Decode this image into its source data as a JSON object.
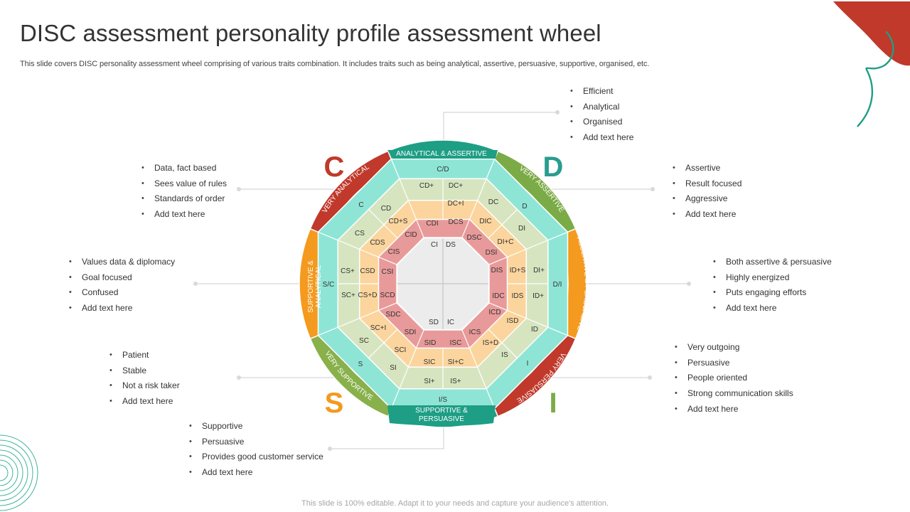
{
  "title": "DISC assessment personality profile assessment wheel",
  "subtitle": "This slide covers DISC personality assessment wheel comprising of various traits combination. It includes traits such as being analytical, assertive, persuasive, supportive, organised, etc.",
  "footer": "This slide is 100% editable. Adapt it to your needs and capture your audience's attention.",
  "colors": {
    "analytical_red": "#c0392b",
    "assertive_green": "#7bab46",
    "persuasive_orange": "#f39a1f",
    "supportive_green": "#88b04b",
    "teal_dark": "#1e9e85",
    "teal_light": "#8ee5d6",
    "sage": "#d6e5bf",
    "peach": "#fbd59d",
    "rose": "#e89a9a",
    "center": "#ececec",
    "deco_red": "#c0392b",
    "deco_teal": "#1e9e85"
  },
  "quadrant_letters": {
    "c": "C",
    "d": "D",
    "i": "I",
    "s": "S"
  },
  "ring_labels": {
    "top": "ANALYTICAL & ASSERTIVE",
    "top_right": "VERY ASSERTIVE",
    "right": "ASSERTIVE & PERSUASIVE",
    "bottom_right": "VERY PERSUASIVE",
    "bottom_line1": "SUPPORTIVE  &",
    "bottom_line2": "PERSUASIVE",
    "bottom_left": "VERY SUPPORTIVE",
    "left_line1": "SUPPORTIVE  &",
    "left_line2": "ANALYTICAL",
    "top_left": "VERY ANALYTICAL"
  },
  "wheel_cells": {
    "ring1": [
      "C/D",
      "D",
      "D/I",
      "I",
      "I/S",
      "S",
      "S/C",
      "C"
    ],
    "ring2": [
      "DC+",
      "DC",
      "DI",
      "DI+",
      "ID+",
      "ID",
      "IS",
      "IS+",
      "SI+",
      "SI",
      "SC",
      "SC+",
      "CS+",
      "CS",
      "CD",
      "CD+"
    ],
    "ring3": [
      "DC+I",
      "DIC",
      "DI+C",
      "ID+S",
      "IDS",
      "ISD",
      "IS+D",
      "SI+C",
      "SIC",
      "SCI",
      "SC+I",
      "CS+D",
      "CSD",
      "CDS",
      "CD+S"
    ],
    "ring4": [
      "DCS",
      "DSC",
      "DSI",
      "DIS",
      "IDC",
      "ICD",
      "ICS",
      "ISC",
      "SID",
      "SDI",
      "SDC",
      "SCD",
      "CSI",
      "CIS",
      "CID",
      "CDI"
    ],
    "center": [
      "CI",
      "DS",
      "SD",
      "IC"
    ]
  },
  "callouts": {
    "top_right": [
      "Efficient",
      "Analytical",
      "Organised",
      "Add text here"
    ],
    "right_upper": [
      "Assertive",
      "Result focused",
      "Aggressive",
      "Add text here"
    ],
    "right_mid": [
      "Both assertive & persuasive",
      "Highly energized",
      "Puts engaging efforts",
      "Add text here"
    ],
    "right_lower": [
      "Very outgoing",
      "Persuasive",
      "People oriented",
      "Strong communication skills",
      "Add text here"
    ],
    "left_upper": [
      "Data, fact based",
      "Sees value of rules",
      "Standards of order",
      "Add text here"
    ],
    "left_mid": [
      "Values data & diplomacy",
      "Goal focused",
      "Confused",
      "Add text here"
    ],
    "left_lower": [
      "Patient",
      "Stable",
      "Not a risk taker",
      "Add text here"
    ],
    "bottom": [
      "Supportive",
      "Persuasive",
      "Provides good customer service",
      "Add text here"
    ]
  }
}
